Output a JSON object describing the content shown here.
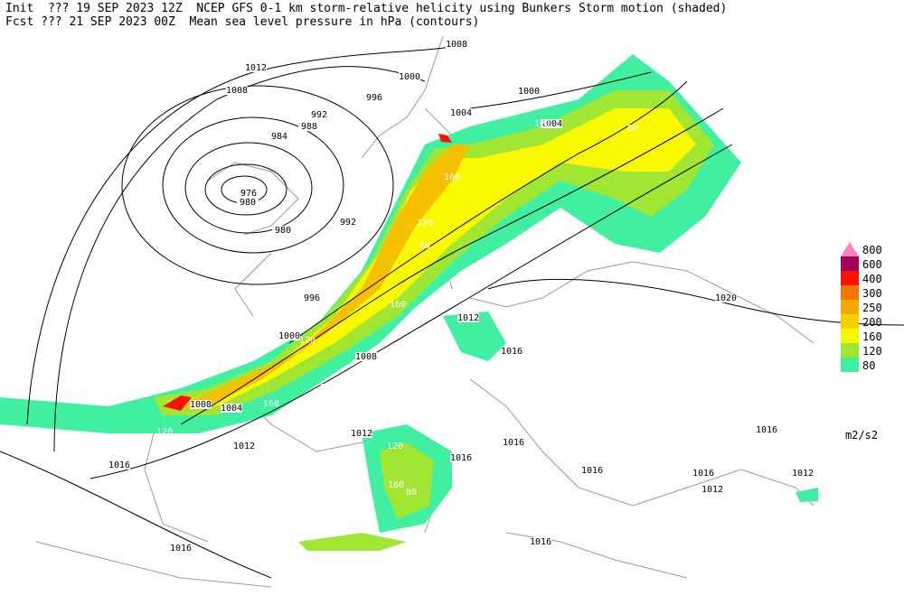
{
  "header": {
    "line1": "Init  ??? 19 SEP 2023 12Z  NCEP GFS 0-1 km storm-relative helicity using Bunkers Storm motion (shaded)",
    "line2": "Fcst ??? 21 SEP 2023 00Z  Mean sea level pressure in hPa (contours)"
  },
  "legend": {
    "levels": [
      80,
      120,
      160,
      200,
      250,
      300,
      400,
      600,
      800
    ],
    "colors": [
      "#40f0a0",
      "#a0e632",
      "#f8f800",
      "#f5d000",
      "#f5a800",
      "#f07800",
      "#ff1000",
      "#a0005a",
      "#ff80c0"
    ],
    "unit": "m2/s2"
  },
  "isobar_labels": [
    1008,
    1012,
    1008,
    1000,
    996,
    1004,
    1000,
    1004,
    992,
    988,
    984,
    976,
    980,
    980,
    992,
    996,
    1020,
    1000,
    1008,
    1012,
    1016,
    1008,
    1004,
    1012,
    1012,
    1016,
    1016,
    1016,
    1016,
    1016,
    1012,
    1016,
    1012,
    1016,
    1016
  ],
  "helicity_labels": [
    80,
    120,
    120,
    200,
    160,
    120,
    80,
    160,
    120,
    80,
    160,
    120,
    80,
    120,
    160,
    80,
    120,
    80
  ]
}
